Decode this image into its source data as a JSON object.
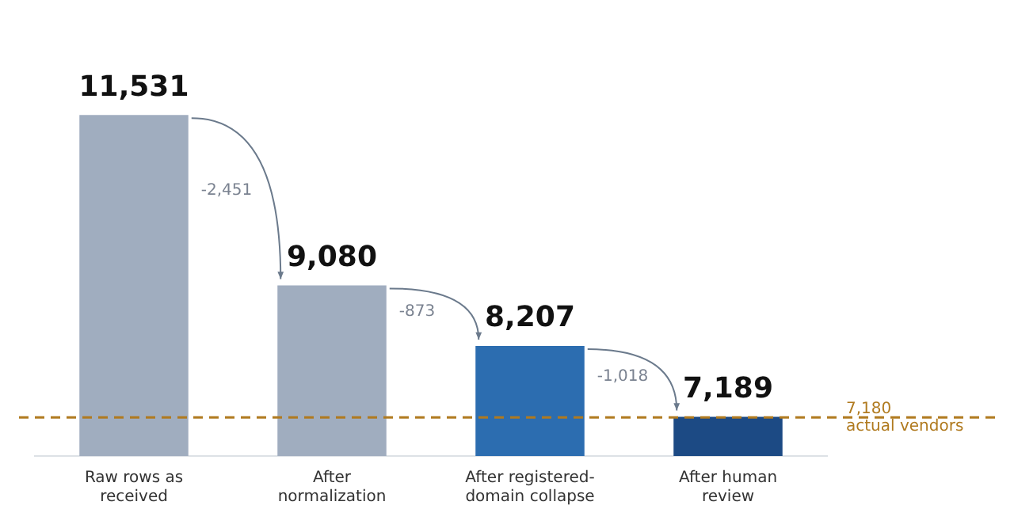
{
  "chart_data": {
    "type": "bar",
    "categories": [
      "Raw rows as received",
      "After normalization",
      "After registered-domain collapse",
      "After human review"
    ],
    "values": [
      11531,
      9080,
      8207,
      7189
    ],
    "colors": [
      "#a0adbf",
      "#a0adbf",
      "#2c6db0",
      "#1c4a84"
    ],
    "value_labels": [
      "11,531",
      "9,080",
      "8,207",
      "7,189"
    ],
    "tick_labels": "x",
    "grid": false,
    "legend": false,
    "annotations": [
      "-2,451",
      "-873",
      "-1,018"
    ],
    "ref_lines": [
      {
        "axis": "y",
        "value": 7180,
        "label": "7,180 actual vendors",
        "color": "#b07a1f",
        "line_style": "dashed"
      }
    ]
  }
}
